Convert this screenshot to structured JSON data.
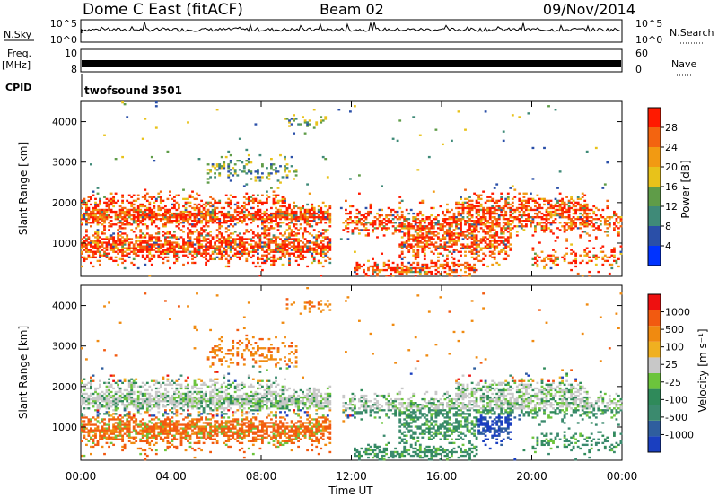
{
  "header": {
    "station": "Dome C East (fitACF)",
    "beam": "Beam 02",
    "date": "09/Nov/2014"
  },
  "strip": {
    "nsky_label": "N.Sky",
    "nsky_ticks": [
      "10^5",
      "10^0"
    ],
    "nsearch_label": "N.Search",
    "nsearch_ticks": [
      "10^5",
      "10^0"
    ],
    "freq_label": "Freq.",
    "freq_unit": "[MHz]",
    "freq_ticks": [
      "10",
      "8"
    ],
    "nave_label": "Nave",
    "nave_ticks": [
      "60",
      "0"
    ],
    "cpid_label": "CPID",
    "cpid_value": "twofsound 3501"
  },
  "chart_data": [
    {
      "type": "heatmap",
      "name": "power",
      "ylabel": "Slant Range [km]",
      "ylim": [
        180,
        4500
      ],
      "yticks": [
        1000,
        2000,
        3000,
        4000
      ],
      "xlim": [
        0,
        24
      ],
      "xticks": [
        0,
        4,
        8,
        12,
        16,
        20,
        24
      ],
      "colorbar": {
        "label": "Power [dB]",
        "ticks": [
          "4",
          "8",
          "12",
          "16",
          "20",
          "24",
          "28"
        ],
        "colors": [
          "#0033ff",
          "#2a4fa8",
          "#3f8a78",
          "#5f9c48",
          "#e8c21a",
          "#f29a12",
          "#f36410",
          "#ff1a00"
        ]
      }
    },
    {
      "type": "heatmap",
      "name": "velocity",
      "ylabel": "Slant Range [km]",
      "ylim": [
        180,
        4500
      ],
      "yticks": [
        1000,
        2000,
        3000,
        4000
      ],
      "xlim": [
        0,
        24
      ],
      "xticks": [
        0,
        4,
        8,
        12,
        16,
        20,
        24
      ],
      "xlabel": "Time UT",
      "xtick_labels": [
        "00:00",
        "04:00",
        "08:00",
        "12:00",
        "16:00",
        "20:00",
        "00:00"
      ],
      "colorbar": {
        "label": "Velocity [m s⁻¹]",
        "ticks": [
          "1000",
          "500",
          "100",
          "25",
          "-25",
          "-100",
          "-500",
          "-1000"
        ],
        "colors": [
          "#1a3fc0",
          "#2f5e9e",
          "#3b8a6e",
          "#2f8a5a",
          "#6cc43c",
          "#c8c8c8",
          "#f0b020",
          "#f08a10",
          "#f25a10",
          "#ee1010"
        ]
      }
    }
  ]
}
